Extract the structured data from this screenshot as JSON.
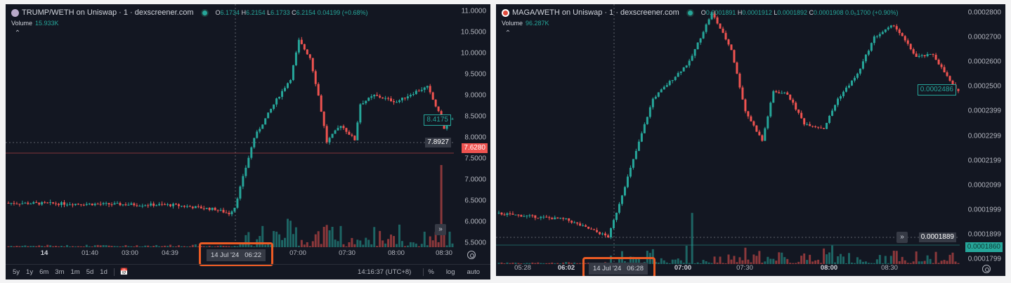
{
  "colors": {
    "up": "#26a69a",
    "down": "#ef5350",
    "bg": "#131722",
    "highlight": "#ec5b24"
  },
  "left": {
    "title": "TRUMP/WETH on Uniswap · 1 · dexscreener.com",
    "ohlc": {
      "o": "6.1734",
      "h": "6.2154",
      "l": "6.1733",
      "c": "6.2154",
      "chg": "0.04199 (+0.68%)"
    },
    "volume_label": "Volume",
    "volume": "15.933K",
    "y_ticks": [
      "11.0000",
      "10.5000",
      "10.0000",
      "9.5000",
      "9.0000",
      "8.5000",
      "8.0000",
      "7.5000",
      "7.0000",
      "6.5000",
      "6.0000",
      "5.5000"
    ],
    "y_range": [
      5.5,
      11.0
    ],
    "last_price": "8.4175",
    "crosshair_price": "7.8927",
    "red_tag": "7.6280",
    "x_ticks": [
      "14",
      "01:40",
      "03:00",
      "04:39",
      "07:00",
      "07:30",
      "08:00",
      "08:30"
    ],
    "x_selected": "14 Jul '24   06:22",
    "ranges": [
      "5y",
      "1y",
      "6m",
      "3m",
      "1m",
      "5d",
      "1d"
    ],
    "clock": "14:16:37 (UTC+8)",
    "opts": [
      "%",
      "log",
      "auto"
    ],
    "price_path": [
      [
        0,
        6.45
      ],
      [
        60,
        6.4
      ],
      [
        75,
        6.3
      ],
      [
        80,
        6.2
      ],
      [
        82,
        6.35
      ],
      [
        89,
        8.0
      ],
      [
        97,
        8.9
      ],
      [
        102,
        9.4
      ],
      [
        105,
        10.3
      ],
      [
        109,
        9.9
      ],
      [
        112,
        9.0
      ],
      [
        115,
        7.9
      ],
      [
        120,
        8.3
      ],
      [
        125,
        7.95
      ],
      [
        127,
        8.8
      ],
      [
        132,
        9.0
      ],
      [
        140,
        8.85
      ],
      [
        147,
        9.1
      ],
      [
        151,
        9.2
      ],
      [
        155,
        8.6
      ],
      [
        157,
        8.2
      ],
      [
        159,
        8.42
      ]
    ]
  },
  "right": {
    "title": "MAGA/WETH on Uniswap · 1 · dexscreener.com",
    "ohlc": {
      "o": "0.0001891",
      "h": "0.0001912",
      "l": "0.0001892",
      "c": "0.0001908",
      "chg": "0.0₅1700 (+0.90%)"
    },
    "volume_label": "Volume",
    "volume": "96.287K",
    "y_ticks": [
      "0.0002800",
      "0.0002700",
      "0.0002600",
      "0.0002500",
      "0.0002399",
      "0.0002299",
      "0.0002199",
      "0.0002099",
      "0.0001999",
      "0.0001899",
      "0.0001799"
    ],
    "y_range": [
      0.0001799,
      0.00028
    ],
    "last_price": "0.0002486",
    "crosshair_price": "0.0001889",
    "green_tag": "0.0001860",
    "x_ticks": [
      "05:28",
      "06:02",
      "07:00",
      "07:30",
      "08:00",
      "08:30"
    ],
    "x_selected": "14 Jul '24   06:28",
    "price_path": [
      [
        0,
        0.0001985
      ],
      [
        25,
        0.000196
      ],
      [
        40,
        0.000189
      ],
      [
        41,
        0.000192
      ],
      [
        56,
        0.000245
      ],
      [
        69,
        0.00026
      ],
      [
        77,
        0.00028
      ],
      [
        84,
        0.000265
      ],
      [
        89,
        0.00024
      ],
      [
        95,
        0.000228
      ],
      [
        99,
        0.000248
      ],
      [
        104,
        0.000247
      ],
      [
        110,
        0.000235
      ],
      [
        117,
        0.000233
      ],
      [
        122,
        0.000245
      ],
      [
        129,
        0.000255
      ],
      [
        135,
        0.00027
      ],
      [
        142,
        0.000275
      ],
      [
        150,
        0.000262
      ],
      [
        156,
        0.000263
      ],
      [
        164,
        0.0002486
      ]
    ]
  }
}
